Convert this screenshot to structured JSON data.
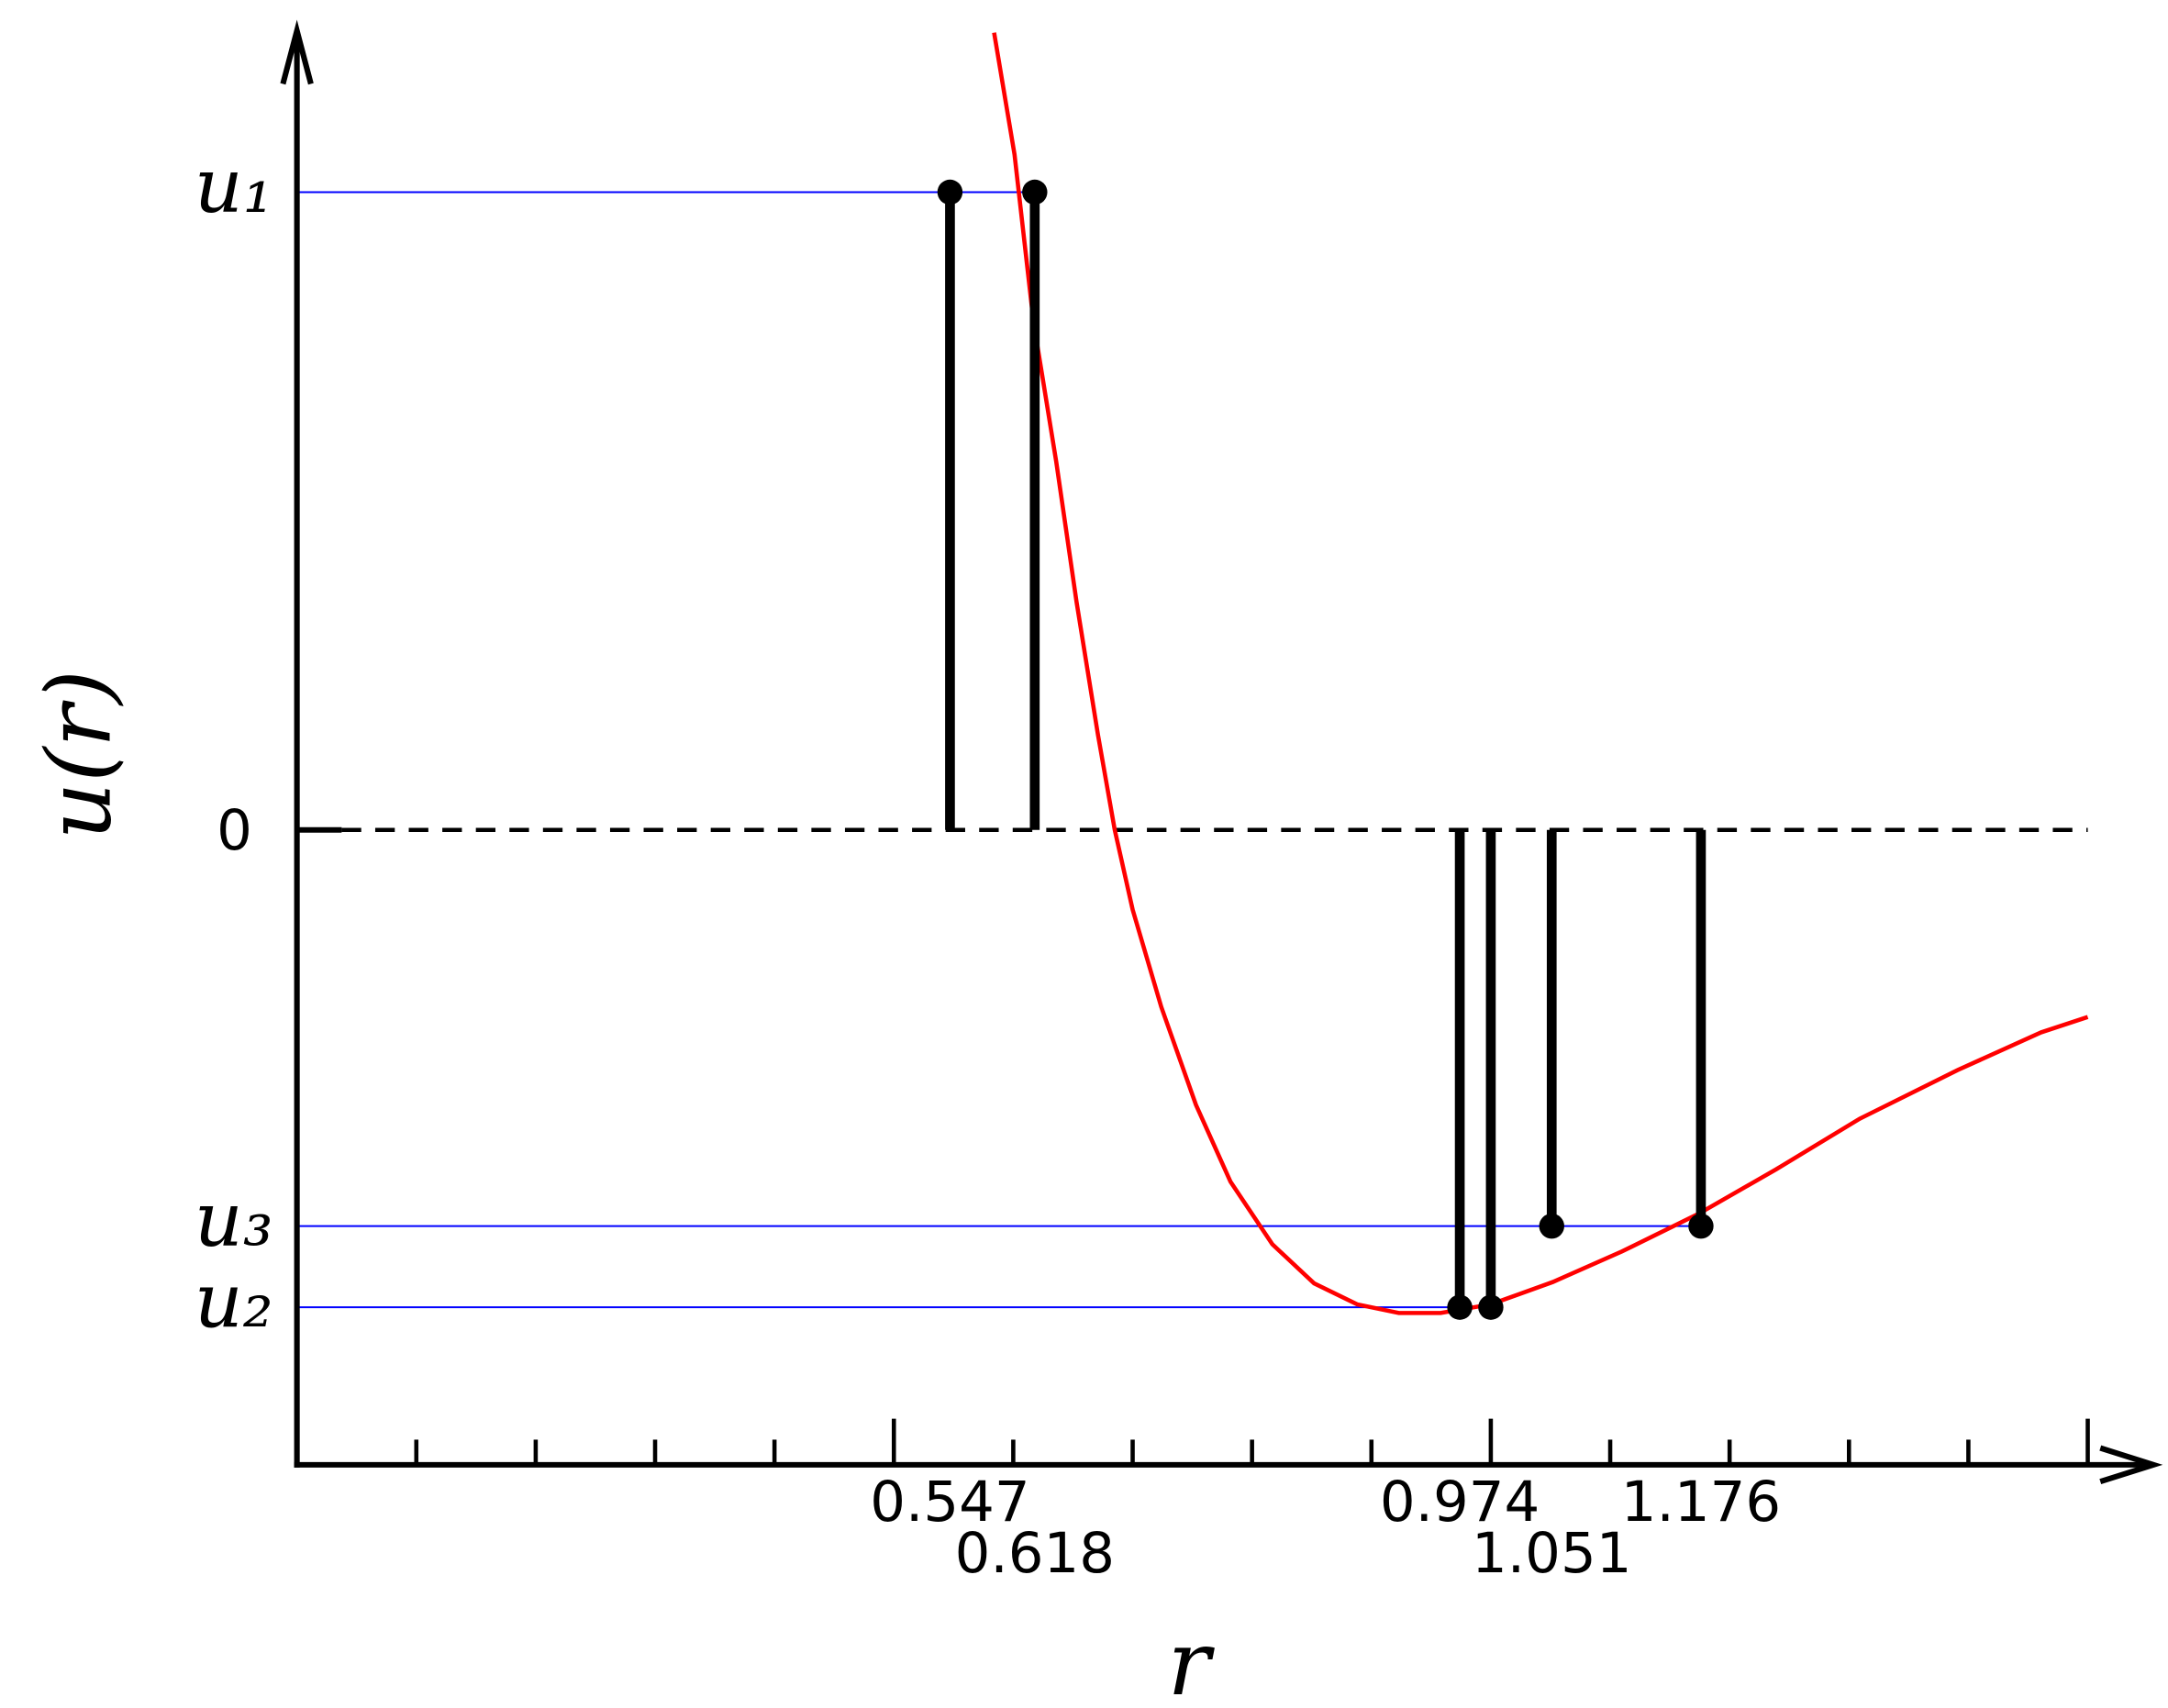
{
  "chart_data": {
    "type": "step-potential",
    "x_label": "r",
    "y_label": "u(r)",
    "xlim": [
      0,
      1.5
    ],
    "ylim": [
      -1.33,
      1.68
    ],
    "xticks": [
      0,
      0.1,
      0.2,
      0.3,
      0.4,
      0.5,
      0.6,
      0.7,
      0.8,
      0.9,
      1.0,
      1.1,
      1.2,
      1.3,
      1.4,
      1.5
    ],
    "yticks": [
      {
        "value": 1.336,
        "label": "u₁"
      },
      0,
      {
        "value": -0.83,
        "label": "u₃"
      },
      {
        "value": -1.0,
        "label": "u₂"
      }
    ],
    "guide_color": "#0000ff",
    "zero_line": "dashed",
    "curve": {
      "color": "#ff0000",
      "x": [
        0.584,
        0.601,
        0.617,
        0.636,
        0.653,
        0.671,
        0.685,
        0.7,
        0.724,
        0.753,
        0.782,
        0.817,
        0.852,
        0.888,
        0.923,
        0.958,
        1.0,
        1.052,
        1.11,
        1.174,
        1.239,
        1.309,
        1.391,
        1.461,
        1.5
      ],
      "values": [
        1.67,
        1.415,
        1.064,
        0.772,
        0.477,
        0.199,
        0,
        -0.167,
        -0.371,
        -0.576,
        -0.737,
        -0.868,
        -0.95,
        -0.994,
        -1.012,
        -1.012,
        -0.994,
        -0.947,
        -0.883,
        -0.804,
        -0.711,
        -0.605,
        -0.503,
        -0.424,
        -0.392
      ]
    },
    "bars": {
      "color": "#000000",
      "x": [
        0.547,
        0.618,
        0.974,
        1.0,
        1.051,
        1.176
      ],
      "values": [
        1.336,
        1.336,
        -1.0,
        -1.0,
        -0.83,
        -0.83
      ],
      "labeled": [
        true,
        true,
        true,
        false,
        true,
        true
      ]
    }
  }
}
